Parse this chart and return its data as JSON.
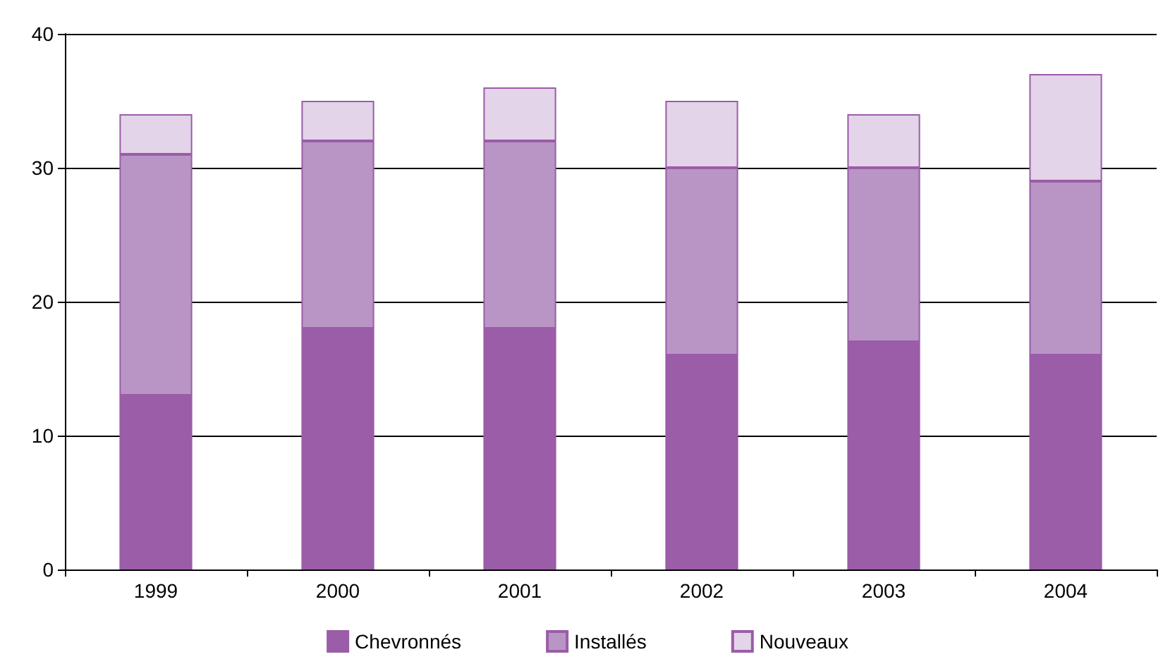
{
  "chart_data": {
    "type": "bar",
    "stacked": true,
    "categories": [
      "1999",
      "2000",
      "2001",
      "2002",
      "2003",
      "2004"
    ],
    "series": [
      {
        "name": "Chevronnés",
        "color": "#9b5ca8",
        "values": [
          13,
          18,
          18,
          16,
          17,
          16
        ]
      },
      {
        "name": "Installés",
        "color": "#b995c5",
        "values": [
          18,
          14,
          14,
          14,
          13,
          13
        ]
      },
      {
        "name": "Nouveaux",
        "color": "#e3d4e9",
        "values": [
          3,
          3,
          4,
          5,
          4,
          8
        ]
      }
    ],
    "ylim": [
      0,
      40
    ],
    "yticks": [
      0,
      10,
      20,
      30,
      40
    ],
    "grid": "y",
    "legend": "bottom"
  }
}
